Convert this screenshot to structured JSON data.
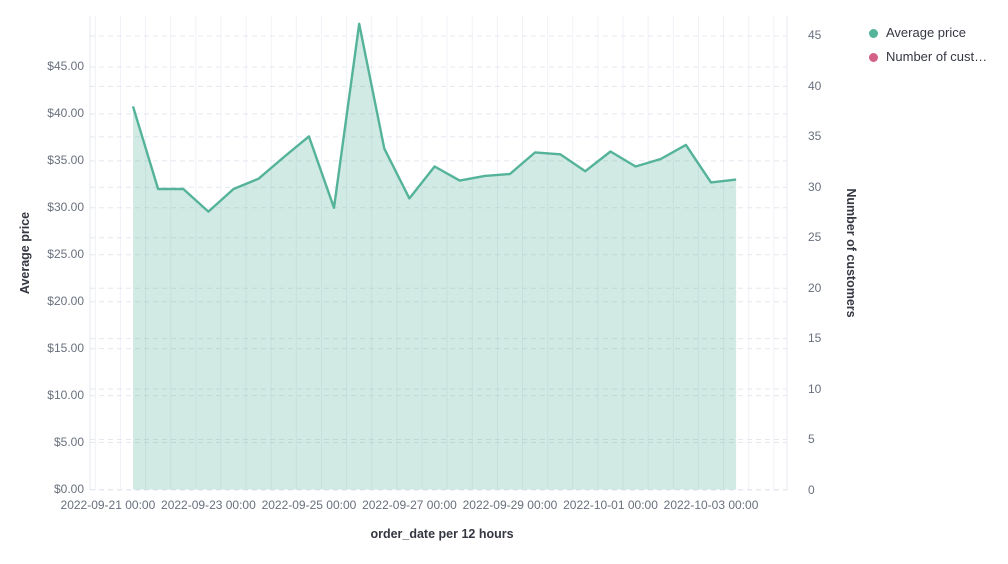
{
  "chart_data": {
    "type": "area",
    "title": "",
    "xlabel": "order_date per 12 hours",
    "ylabel_left": "Average price",
    "ylabel_right": "Number of customers",
    "x": [
      "2022-09-21 12:00",
      "2022-09-22 00:00",
      "2022-09-22 12:00",
      "2022-09-23 00:00",
      "2022-09-23 12:00",
      "2022-09-24 00:00",
      "2022-09-24 12:00",
      "2022-09-25 00:00",
      "2022-09-25 12:00",
      "2022-09-26 00:00",
      "2022-09-26 12:00",
      "2022-09-27 00:00",
      "2022-09-27 12:00",
      "2022-09-28 00:00",
      "2022-09-28 12:00",
      "2022-09-29 00:00",
      "2022-09-29 12:00",
      "2022-09-30 00:00",
      "2022-09-30 12:00",
      "2022-10-01 00:00",
      "2022-10-01 12:00",
      "2022-10-02 00:00",
      "2022-10-02 12:00",
      "2022-10-03 00:00",
      "2022-10-03 12:00"
    ],
    "series": [
      {
        "name": "Average price",
        "axis": "left",
        "color": "#54B399",
        "fill": "rgba(84,179,153,0.27)",
        "values": [
          40.8,
          32.0,
          32.0,
          29.6,
          32.0,
          33.1,
          35.4,
          37.6,
          30.0,
          49.6,
          36.3,
          31.0,
          34.4,
          32.9,
          33.4,
          33.6,
          35.9,
          35.7,
          33.9,
          36.0,
          34.4,
          35.2,
          36.7,
          32.7,
          33.0
        ]
      },
      {
        "name": "Number of customers",
        "axis": "right",
        "color": "#D36086",
        "values_visible": false
      }
    ],
    "left_axis": {
      "tick_labels": [
        "$0.00",
        "$5.00",
        "$10.00",
        "$15.00",
        "$20.00",
        "$25.00",
        "$30.00",
        "$35.00",
        "$40.00",
        "$45.00"
      ],
      "tick_values": [
        0,
        5,
        10,
        15,
        20,
        25,
        30,
        35,
        40,
        45
      ],
      "ylim": [
        0,
        50.4
      ]
    },
    "right_axis": {
      "tick_labels": [
        "0",
        "5",
        "10",
        "15",
        "20",
        "25",
        "30",
        "35",
        "40",
        "45"
      ],
      "tick_values": [
        0,
        5,
        10,
        15,
        20,
        25,
        30,
        35,
        40,
        45
      ],
      "ylim": [
        0,
        47.0
      ]
    },
    "x_ticks": [
      "2022-09-21 00:00",
      "2022-09-23 00:00",
      "2022-09-25 00:00",
      "2022-09-27 00:00",
      "2022-09-29 00:00",
      "2022-10-01 00:00",
      "2022-10-03 00:00"
    ],
    "grid": true,
    "legend": {
      "position": "top-right",
      "items": [
        {
          "label": "Average price",
          "color": "#54B399"
        },
        {
          "label": "Number of cust…",
          "color": "#D36086"
        }
      ]
    },
    "colors": {
      "tick_text": "#69707d",
      "title_text": "#343741",
      "grid_dashed": "#e4e8ef",
      "grid_vertical": "#f0f2f7",
      "axis_line": "#e6eaf1",
      "background": "#ffffff"
    }
  }
}
